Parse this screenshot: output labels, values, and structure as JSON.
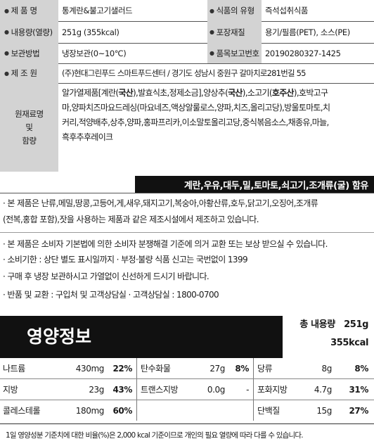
{
  "info": {
    "product_name_label": "제 품 명",
    "product_name": "통계란&불고기샐러드",
    "type_label": "식품의 유형",
    "type": "즉석섭취식품",
    "content_label": "내용량(열량)",
    "content": "251g  (355kcal)",
    "packaging_label": "포장재질",
    "packaging": "용기/필름(PET), 소스(PE)",
    "storage_label": "보관방법",
    "storage": "냉장보관(0~10℃)",
    "report_label": "품목보고번호",
    "report_no": "20190280327-1425",
    "maker_label": "제 조 원",
    "maker": "(주)현대그린푸드 스마트푸드센터 / 경기도 성남시 중원구 갈마치로281번길 55"
  },
  "ingredients": {
    "label_line1": "원재료명",
    "label_line2": "및",
    "label_line3": "함량",
    "lines": [
      "알가열제품[계란(국산),발효식초,정제소금],양상추(국산),소고기(호주산),호박고구",
      "마,양파치즈마요드레싱(마요네즈,액상알룰로스,양파,치즈,올리고당),방울토마토,치",
      "커리,적양배추,상추,양파,홍파프리카,이소말토올리고당,중식볶음소스,채종유,마늘,",
      "흑후추후레이크"
    ]
  },
  "allergen": "계란,우유,대두,밀,토마토,쇠고기,조개류(굴) 함유",
  "notices": [
    "· 본 제품은 난류,메밀,땅콩,고등어,게,새우,돼지고기,복숭아,아황산류,호두,닭고기,오징어,조개류",
    "  (전복,홍합 포함),잣을 사용하는 제품과 같은 제조시설에서 제조하고 있습니다.",
    "· 본 제품은 소비자 기본법에 의한 소비자 분쟁해결 기준에 의거 교환 또는 보상 받으실 수 있습니다.",
    "· 소비기한 : 상단 별도 표시일까지 · 부정·불량 식품 신고는 국번없이 1399",
    "· 구매 후 냉장 보관하시고 가열없이 신선하게 드시기 바랍니다.",
    "· 반품 및 교환 : 구입처 및 고객상담실 · 고객상담실 : 1800-0700"
  ],
  "nutrition": {
    "title": "영양정보",
    "total_label": "총 내용량",
    "total_amount": "251g",
    "total_kcal": "355kcal",
    "rows": [
      [
        {
          "name": "나트륨",
          "amount": "430mg",
          "pct": "22%"
        },
        {
          "name": "탄수화물",
          "amount": "27g",
          "pct": "8%"
        },
        {
          "name": "당류",
          "amount": "8g",
          "pct": "8%"
        }
      ],
      [
        {
          "name": "지방",
          "amount": "23g",
          "pct": "43%"
        },
        {
          "name": "트랜스지방",
          "amount": "0.0g",
          "pct": "-"
        },
        {
          "name": "포화지방",
          "amount": "4.7g",
          "pct": "31%"
        }
      ],
      [
        {
          "name": "콜레스테롤",
          "amount": "180mg",
          "pct": "60%"
        },
        {
          "name": "",
          "amount": "",
          "pct": ""
        },
        {
          "name": "단백질",
          "amount": "15g",
          "pct": "27%"
        }
      ]
    ],
    "footnote": "1일 영양성분 기준치에 대한 비율(%)은 2,000 kcal 기준이므로 개인의 필요 열량에 따라 다를 수 있습니다."
  }
}
